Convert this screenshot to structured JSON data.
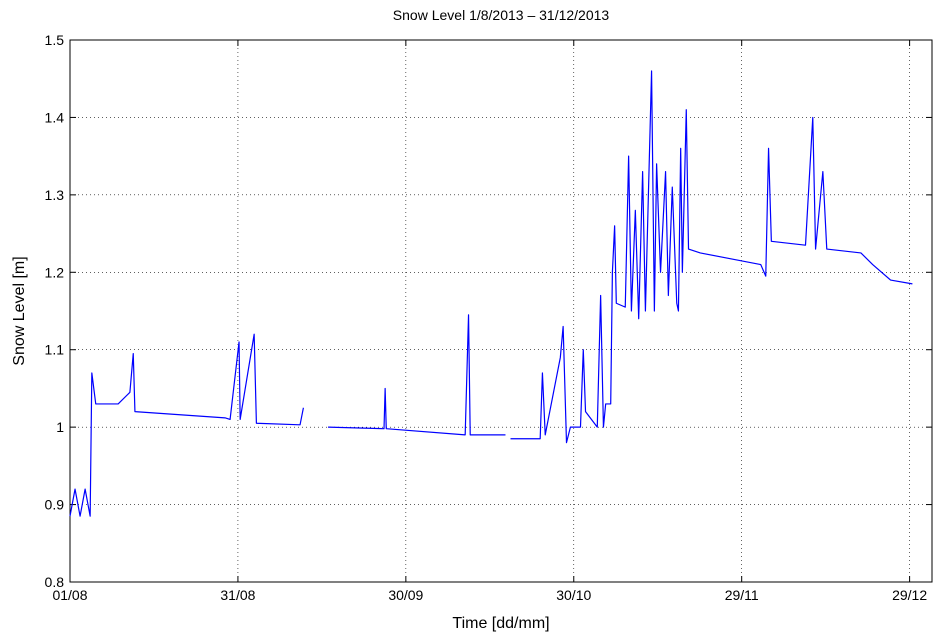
{
  "chart_data": {
    "type": "line",
    "title": "Snow Level 1/8/2013 – 31/12/2013",
    "xlabel": "Time [dd/mm]",
    "ylabel": "Snow Level [m]",
    "xlim": [
      0,
      154
    ],
    "xticks": [
      {
        "value": 0,
        "label": "01/08"
      },
      {
        "value": 30,
        "label": "31/08"
      },
      {
        "value": 60,
        "label": "30/09"
      },
      {
        "value": 90,
        "label": "30/10"
      },
      {
        "value": 120,
        "label": "29/11"
      },
      {
        "value": 150,
        "label": "29/12"
      }
    ],
    "ylim": [
      0.8,
      1.5
    ],
    "yticks": [
      0.8,
      0.9,
      1,
      1.1,
      1.2,
      1.3,
      1.4,
      1.5
    ],
    "grid": true,
    "x": [
      0,
      0.9,
      1.8,
      2.7,
      3.6,
      3.9,
      4.6,
      8.6,
      10.7,
      11.3,
      11.6,
      27.7,
      28.6,
      30.2,
      30.4,
      32.9,
      33.3,
      41.1,
      41.7,
      42,
      46.1,
      56.1,
      56.3,
      56.5,
      70.6,
      71.2,
      71.5,
      77.8,
      78,
      78.7,
      84.0,
      84.4,
      84.9,
      87.6,
      88.1,
      88.7,
      89.4,
      91.2,
      91.7,
      92.1,
      94.2,
      94.8,
      95.3,
      95.7,
      96.6,
      96.9,
      97.3,
      97.6,
      99.2,
      99.8,
      100.3,
      101.0,
      101.6,
      102.3,
      102.8,
      103.9,
      104.4,
      104.8,
      105.5,
      106.4,
      106.9,
      107.6,
      108.4,
      108.7,
      109.1,
      109.4,
      110.1,
      110.5,
      112.6,
      119.8,
      123.4,
      124.3,
      124.8,
      125.3,
      131.4,
      132.7,
      133.2,
      134.5,
      135.2,
      141.3,
      143.4,
      146.6,
      150.5
    ],
    "series": [
      {
        "name": "Snow Level",
        "color": "#0000ff",
        "values": [
          0.885,
          0.92,
          0.885,
          0.92,
          0.885,
          1.07,
          1.03,
          1.03,
          1.045,
          1.095,
          1.02,
          1.012,
          1.01,
          1.11,
          1.01,
          1.12,
          1.005,
          1.003,
          1.025,
          null,
          1.0,
          0.998,
          1.05,
          0.998,
          0.99,
          1.145,
          0.99,
          0.99,
          null,
          0.985,
          0.985,
          1.07,
          0.99,
          1.09,
          1.13,
          0.98,
          1.0,
          1.0,
          1.1,
          1.02,
          1.0,
          1.17,
          1.0,
          1.03,
          1.03,
          1.2,
          1.26,
          1.16,
          1.155,
          1.35,
          1.15,
          1.28,
          1.14,
          1.33,
          1.15,
          1.46,
          1.15,
          1.34,
          1.2,
          1.33,
          1.17,
          1.31,
          1.16,
          1.15,
          1.36,
          1.2,
          1.41,
          1.23,
          1.225,
          1.215,
          1.21,
          1.195,
          1.36,
          1.24,
          1.235,
          1.4,
          1.23,
          1.33,
          1.23,
          1.225,
          1.21,
          1.19,
          1.185
        ]
      }
    ]
  }
}
